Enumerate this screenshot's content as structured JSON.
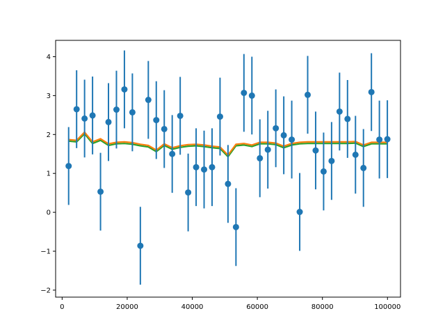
{
  "chart_data": {
    "type": "scatter",
    "title": "",
    "xlabel": "",
    "ylabel": "",
    "xlim": [
      -2000,
      104000
    ],
    "ylim": [
      -2.18,
      4.42
    ],
    "xticks": [
      0,
      20000,
      40000,
      60000,
      80000,
      100000
    ],
    "xtick_labels": [
      "0",
      "20000",
      "40000",
      "60000",
      "80000",
      "100000"
    ],
    "yticks": [
      -2,
      -1,
      0,
      1,
      2,
      3,
      4
    ],
    "ytick_labels": [
      "−2",
      "−1",
      "0",
      "1",
      "2",
      "3",
      "4"
    ],
    "grid": false,
    "legend": "none",
    "errorbar_series": {
      "color": "#1f77b4",
      "error": 1.0,
      "x": [
        2000,
        4449,
        6898,
        9347,
        11796,
        14245,
        16694,
        19143,
        21592,
        24041,
        26490,
        28939,
        31388,
        33837,
        36286,
        38735,
        41184,
        43633,
        46082,
        48531,
        50980,
        53429,
        55878,
        58327,
        60776,
        63225,
        65674,
        68123,
        70572,
        73021,
        75470,
        77919,
        80368,
        82817,
        85266,
        87715,
        90164,
        92613,
        95062,
        97511,
        99960
      ],
      "y": [
        1.19,
        2.65,
        2.41,
        2.49,
        0.53,
        2.32,
        2.64,
        3.16,
        2.57,
        -0.86,
        2.89,
        2.37,
        2.14,
        1.5,
        2.48,
        0.51,
        1.16,
        1.1,
        1.16,
        2.46,
        0.73,
        -0.38,
        3.07,
        3.0,
        1.39,
        1.61,
        2.16,
        1.98,
        1.87,
        0.01,
        3.02,
        1.59,
        1.05,
        1.32,
        2.59,
        2.4,
        1.48,
        1.14,
        3.09,
        1.87,
        1.88
      ]
    },
    "line_series": [
      {
        "color": "#2ca02c",
        "values": [
          1.83,
          1.81,
          2.02,
          1.77,
          1.85,
          1.72,
          1.76,
          1.77,
          1.75,
          1.71,
          1.68,
          1.56,
          1.72,
          1.62,
          1.67,
          1.7,
          1.71,
          1.69,
          1.66,
          1.64,
          1.43,
          1.71,
          1.73,
          1.69,
          1.76,
          1.76,
          1.74,
          1.66,
          1.73,
          1.76,
          1.77,
          1.77,
          1.77,
          1.77,
          1.77,
          1.77,
          1.78,
          1.69,
          1.76,
          1.76,
          1.76
        ]
      },
      {
        "color": "#ff7f0e",
        "values": [
          1.87,
          1.85,
          2.06,
          1.81,
          1.89,
          1.76,
          1.8,
          1.81,
          1.79,
          1.75,
          1.72,
          1.6,
          1.76,
          1.66,
          1.71,
          1.74,
          1.75,
          1.73,
          1.7,
          1.68,
          1.47,
          1.75,
          1.77,
          1.73,
          1.8,
          1.8,
          1.78,
          1.7,
          1.77,
          1.8,
          1.81,
          1.81,
          1.81,
          1.81,
          1.81,
          1.81,
          1.82,
          1.73,
          1.8,
          1.8,
          1.8
        ]
      }
    ]
  }
}
